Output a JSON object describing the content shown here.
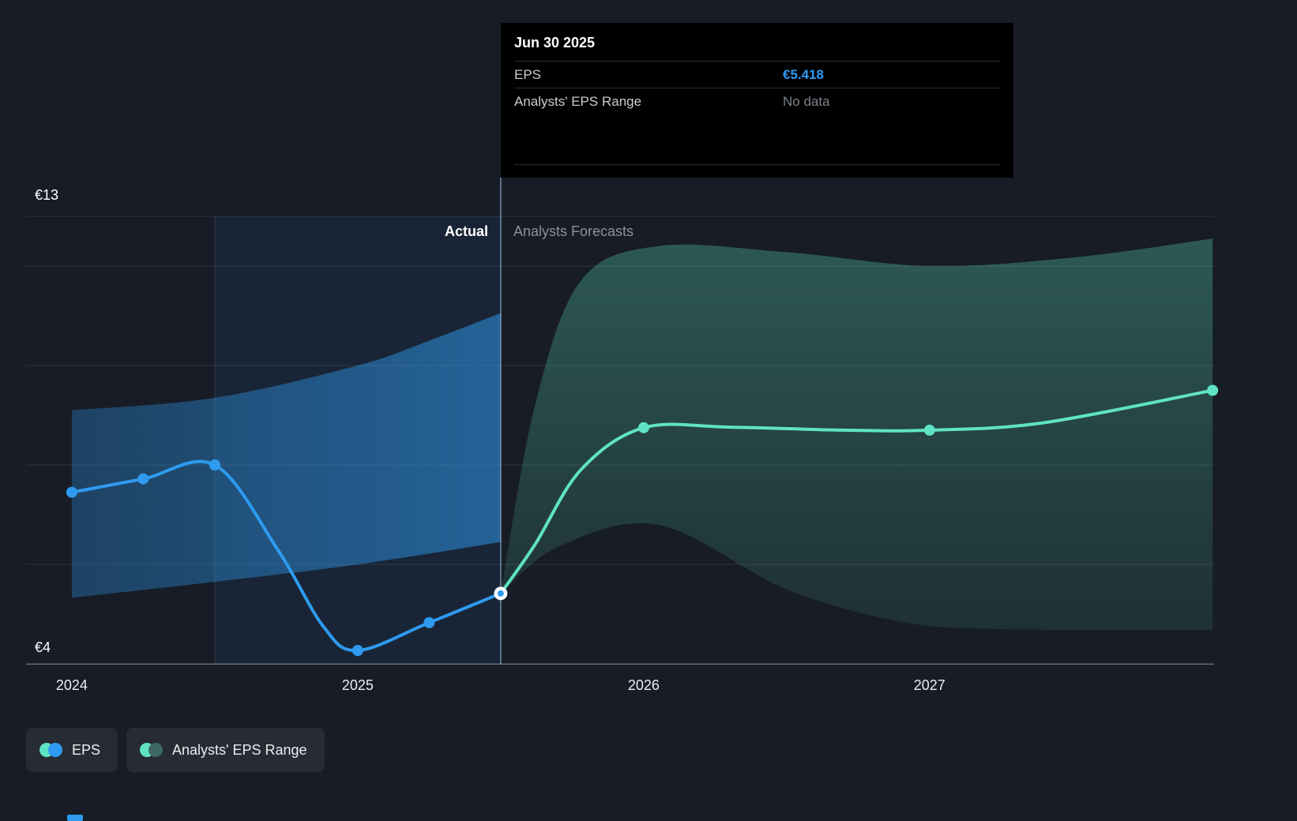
{
  "tooltip": {
    "title": "Jun 30 2025",
    "rows": [
      {
        "label": "EPS",
        "value": "€5.418",
        "value_color": "#2f9bf4"
      },
      {
        "label": "Analysts' EPS Range",
        "value": "No data",
        "value_color": "#7c828a"
      }
    ]
  },
  "annotations": {
    "actual": "Actual",
    "forecast": "Analysts Forecasts"
  },
  "legend": [
    {
      "label": "EPS",
      "dot_colors": [
        "#5fe3c4",
        "#2e9bf0"
      ]
    },
    {
      "label": "Analysts' EPS Range",
      "dot_colors": [
        "#5fe3c4",
        "#3e6862"
      ]
    }
  ],
  "colors": {
    "background": "#171c26",
    "accent_blue": "#2e9bf0",
    "accent_teal": "#5fe3c4",
    "grid": "rgba(255,255,255,0.10)",
    "axis_line": "rgba(255,255,255,0.35)",
    "highlight_fill": "rgba(46,155,240,0.08)",
    "highlight_edge": "rgba(255,255,255,0.12)",
    "divider": "rgba(155,185,215,0.55)",
    "tooltip_bg": "#000000",
    "tooltip_border": "#2b2b2b",
    "legend_bg": "#262b34",
    "text_primary": "#ffffff",
    "text_muted": "#8b929c"
  },
  "chart_data": {
    "type": "line",
    "currency": "€",
    "x_axis": {
      "domain": [
        2023.84,
        2027.995
      ],
      "ticks": [
        {
          "label": "2024",
          "x": 2024
        },
        {
          "label": "2025",
          "x": 2025
        },
        {
          "label": "2026",
          "x": 2026
        },
        {
          "label": "2027",
          "x": 2027
        }
      ]
    },
    "y_axis": {
      "domain": [
        4,
        13
      ],
      "top_label": "€13",
      "bottom_label": "€4",
      "gridlines": [
        13,
        12,
        10,
        8,
        6
      ],
      "baseline": 4
    },
    "divider_x": 2025.5,
    "highlight": {
      "from": 2024.5,
      "to": 2025.5
    },
    "series": [
      {
        "name": "eps-actual",
        "label": "EPS (actual)",
        "color": "#2e9bf0",
        "points": [
          [
            2024,
            7.45
          ],
          [
            2024.25,
            7.72
          ],
          [
            2024.5,
            8.0
          ],
          [
            2024.72,
            6.3
          ],
          [
            2024.88,
            4.75
          ],
          [
            2025,
            4.27
          ],
          [
            2025.25,
            4.83
          ],
          [
            2025.5,
            5.418
          ]
        ],
        "markers": [
          [
            2024,
            7.45
          ],
          [
            2024.25,
            7.72
          ],
          [
            2024.5,
            8.0
          ],
          [
            2025,
            4.27
          ],
          [
            2025.25,
            4.83
          ]
        ]
      },
      {
        "name": "eps-forecast",
        "label": "EPS (analysts forecast)",
        "color": "#5fe3c4",
        "points": [
          [
            2025.5,
            5.418
          ],
          [
            2025.62,
            6.4
          ],
          [
            2025.78,
            7.9
          ],
          [
            2026,
            8.75
          ],
          [
            2026.3,
            8.76
          ],
          [
            2026.7,
            8.7
          ],
          [
            2027,
            8.7
          ],
          [
            2027.4,
            8.85
          ],
          [
            2027.99,
            9.5
          ]
        ],
        "markers": [
          [
            2026,
            8.75
          ],
          [
            2027,
            8.7
          ],
          [
            2027.99,
            9.5
          ]
        ]
      }
    ],
    "selected_point": {
      "x": 2025.5,
      "y": 5.418
    },
    "bands": [
      {
        "name": "actual-range-band",
        "top": [
          [
            2024,
            9.1
          ],
          [
            2024.5,
            9.35
          ],
          [
            2025,
            10.0
          ],
          [
            2025.25,
            10.5
          ],
          [
            2025.5,
            11.05
          ]
        ],
        "bottom": [
          [
            2024,
            5.33
          ],
          [
            2024.5,
            5.65
          ],
          [
            2025,
            6.0
          ],
          [
            2025.5,
            6.45
          ]
        ],
        "gradient": {
          "direction": "horizontal",
          "from": "rgba(46,155,240,0.30)",
          "to": "rgba(46,155,240,0.52)"
        }
      },
      {
        "name": "forecast-range-band",
        "top": [
          [
            2025.5,
            5.418
          ],
          [
            2025.62,
            9.2
          ],
          [
            2025.78,
            11.7
          ],
          [
            2026.05,
            12.4
          ],
          [
            2026.5,
            12.28
          ],
          [
            2027,
            12.0
          ],
          [
            2027.5,
            12.17
          ],
          [
            2027.99,
            12.55
          ]
        ],
        "bottom": [
          [
            2025.5,
            5.418
          ],
          [
            2025.7,
            6.35
          ],
          [
            2026.05,
            6.8
          ],
          [
            2026.5,
            5.5
          ],
          [
            2026.9,
            4.85
          ],
          [
            2027.25,
            4.7
          ],
          [
            2027.99,
            4.68
          ]
        ],
        "gradient": {
          "direction": "vertical",
          "from": "rgba(95,227,196,0.30)",
          "to": "rgba(95,227,196,0.10)"
        }
      }
    ]
  }
}
